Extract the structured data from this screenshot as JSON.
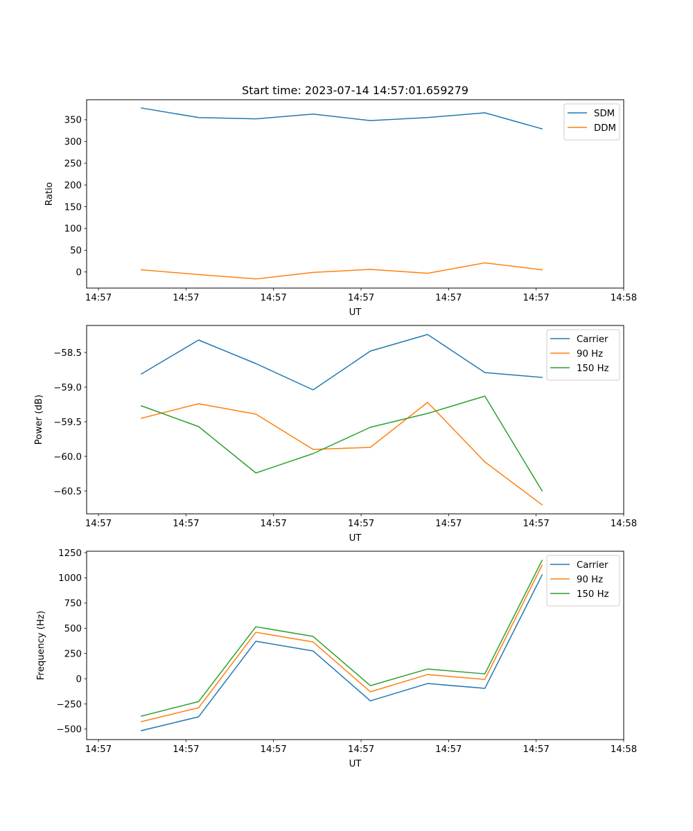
{
  "figure": {
    "title": "Start time: 2023-07-14 14:57:01.659279"
  },
  "chart_data": [
    {
      "type": "line",
      "title": "Start time: 2023-07-14 14:57:01.659279",
      "xlabel": "UT",
      "ylabel": "Ratio",
      "x_tick_labels": [
        "14:57",
        "14:57",
        "14:57",
        "14:57",
        "14:57",
        "14:57",
        "14:58"
      ],
      "y_ticks": [
        0,
        50,
        100,
        150,
        200,
        250,
        300,
        350
      ],
      "y_tick_labels": [
        "0",
        "50",
        "100",
        "150",
        "200",
        "250",
        "300",
        "350"
      ],
      "ylim": [
        -37,
        396
      ],
      "xlim": [
        -0.135,
        6
      ],
      "x": [
        0.49,
        1.144,
        1.798,
        2.452,
        3.106,
        3.76,
        4.414,
        5.068
      ],
      "legend_position": "top-right",
      "series": [
        {
          "name": "SDM",
          "color": "#1f77b4",
          "values": [
            377,
            355,
            352,
            363,
            348,
            355,
            366,
            329
          ]
        },
        {
          "name": "DDM",
          "color": "#ff7f0e",
          "values": [
            5,
            -6,
            -16,
            -1,
            6,
            -3,
            21,
            5
          ]
        }
      ]
    },
    {
      "type": "line",
      "title": "",
      "xlabel": "UT",
      "ylabel": "Power (dB)",
      "x_tick_labels": [
        "14:57",
        "14:57",
        "14:57",
        "14:57",
        "14:57",
        "14:57",
        "14:58"
      ],
      "y_ticks": [
        -60.5,
        -60.0,
        -59.5,
        -59.0,
        -58.5
      ],
      "y_tick_labels": [
        "−60.5",
        "−60.0",
        "−59.5",
        "−59.0",
        "−58.5"
      ],
      "ylim": [
        -60.83,
        -58.11
      ],
      "xlim": [
        -0.135,
        6
      ],
      "x": [
        0.49,
        1.144,
        1.798,
        2.452,
        3.106,
        3.76,
        4.414,
        5.068
      ],
      "legend_position": "top-right",
      "series": [
        {
          "name": "Carrier",
          "color": "#1f77b4",
          "values": [
            -58.81,
            -58.32,
            -58.66,
            -59.04,
            -58.48,
            -58.24,
            -58.79,
            -58.86
          ]
        },
        {
          "name": "90 Hz",
          "color": "#ff7f0e",
          "values": [
            -59.45,
            -59.24,
            -59.39,
            -59.9,
            -59.87,
            -59.22,
            -60.08,
            -60.7
          ]
        },
        {
          "name": "150 Hz",
          "color": "#2ca02c",
          "values": [
            -59.27,
            -59.57,
            -60.24,
            -59.96,
            -59.58,
            -59.38,
            -59.13,
            -60.5
          ]
        }
      ]
    },
    {
      "type": "line",
      "title": "",
      "xlabel": "UT",
      "ylabel": "Frequency (Hz)",
      "x_tick_labels": [
        "14:57",
        "14:57",
        "14:57",
        "14:57",
        "14:57",
        "14:57",
        "14:58"
      ],
      "y_ticks": [
        -500,
        -250,
        0,
        250,
        500,
        750,
        1000,
        1250
      ],
      "y_tick_labels": [
        "−500",
        "−250",
        "0",
        "250",
        "500",
        "750",
        "1000",
        "1250"
      ],
      "ylim": [
        -604,
        1264
      ],
      "xlim": [
        -0.135,
        6
      ],
      "x": [
        0.49,
        1.144,
        1.798,
        2.452,
        3.106,
        3.76,
        4.414,
        5.068
      ],
      "legend_position": "top-right",
      "series": [
        {
          "name": "Carrier",
          "color": "#1f77b4",
          "values": [
            -515,
            -378,
            371,
            275,
            -220,
            -48,
            -96,
            1030
          ]
        },
        {
          "name": "90 Hz",
          "color": "#ff7f0e",
          "values": [
            -426,
            -288,
            460,
            364,
            -130,
            41,
            -7,
            1126
          ]
        },
        {
          "name": "150 Hz",
          "color": "#2ca02c",
          "values": [
            -371,
            -227,
            515,
            419,
            -69,
            96,
            48,
            1174
          ]
        }
      ]
    }
  ]
}
